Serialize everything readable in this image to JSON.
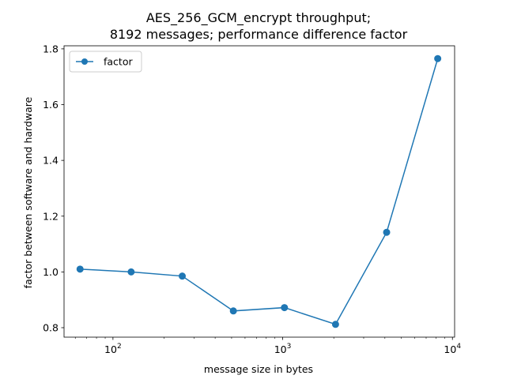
{
  "chart_data": {
    "type": "line",
    "title_lines": [
      "AES_256_GCM_encrypt throughput;",
      "8192 messages; performance difference factor"
    ],
    "xlabel": "message size in bytes",
    "ylabel": "factor between software and hardware",
    "x_scale": "log",
    "xlim": [
      51.5,
      10300
    ],
    "ylim": [
      0.766,
      1.811
    ],
    "x_ticks": [
      {
        "value": 100,
        "base": "10",
        "exp": "2"
      },
      {
        "value": 1000,
        "base": "10",
        "exp": "3"
      },
      {
        "value": 10000,
        "base": "10",
        "exp": "4"
      }
    ],
    "y_ticks": [
      {
        "value": 0.8,
        "label": "0.8"
      },
      {
        "value": 1.0,
        "label": "1.0"
      },
      {
        "value": 1.2,
        "label": "1.2"
      },
      {
        "value": 1.4,
        "label": "1.4"
      },
      {
        "value": 1.6,
        "label": "1.6"
      },
      {
        "value": 1.8,
        "label": "1.8"
      }
    ],
    "grid": false,
    "legend_position": "top-left",
    "series": [
      {
        "name": "factor",
        "color": "#1f77b4",
        "marker": "circle",
        "x": [
          64,
          128,
          256,
          512,
          1024,
          2048,
          4096,
          8192
        ],
        "y": [
          1.01,
          1.0,
          0.985,
          0.86,
          0.872,
          0.812,
          1.142,
          1.765
        ]
      }
    ]
  }
}
